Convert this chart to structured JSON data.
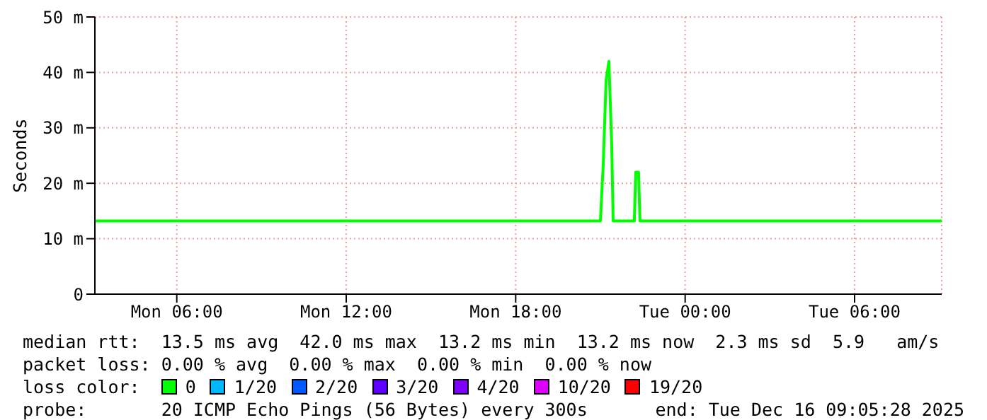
{
  "chart_data": {
    "type": "line",
    "ylabel": "Seconds",
    "legend_title": "loss color:",
    "x": [
      "2025-12-15T03:06",
      "2025-12-15T21:00",
      "2025-12-15T21:06",
      "2025-12-15T21:12",
      "2025-12-15T21:18",
      "2025-12-15T21:24",
      "2025-12-15T21:27",
      "2025-12-15T22:12",
      "2025-12-15T22:15",
      "2025-12-15T22:21",
      "2025-12-15T22:24",
      "2025-12-16T09:05"
    ],
    "xlim": [
      "2025-12-15T03:06",
      "2025-12-16T09:05"
    ],
    "xticks": [
      {
        "value": "2025-12-15T06:00",
        "label": "Mon 06:00"
      },
      {
        "value": "2025-12-15T12:00",
        "label": "Mon 12:00"
      },
      {
        "value": "2025-12-15T18:00",
        "label": "Mon 18:00"
      },
      {
        "value": "2025-12-16T00:00",
        "label": "Tue 00:00"
      },
      {
        "value": "2025-12-16T06:00",
        "label": "Tue 06:00"
      }
    ],
    "ylim": [
      0,
      50
    ],
    "yticks": [
      {
        "value": 0,
        "label": "0"
      },
      {
        "value": 10,
        "label": "10 m"
      },
      {
        "value": 20,
        "label": "20 m"
      },
      {
        "value": 30,
        "label": "30 m"
      },
      {
        "value": 40,
        "label": "40 m"
      },
      {
        "value": 50,
        "label": "50 m"
      }
    ],
    "series": [
      {
        "name": "0",
        "color": "#00ff00",
        "values": [
          13.2,
          13.2,
          23.5,
          38.5,
          42.0,
          27.0,
          13.2,
          13.2,
          22.0,
          22.0,
          13.2,
          13.2
        ]
      },
      {
        "name": "1/20",
        "color": "#00b8ff",
        "values": [
          null,
          null,
          null,
          null,
          null,
          null,
          null,
          null,
          null,
          null,
          null,
          null
        ]
      },
      {
        "name": "2/20",
        "color": "#0059ff",
        "values": [
          null,
          null,
          null,
          null,
          null,
          null,
          null,
          null,
          null,
          null,
          null,
          null
        ]
      },
      {
        "name": "3/20",
        "color": "#5e00ff",
        "values": [
          null,
          null,
          null,
          null,
          null,
          null,
          null,
          null,
          null,
          null,
          null,
          null
        ]
      },
      {
        "name": "4/20",
        "color": "#7e00ff",
        "values": [
          null,
          null,
          null,
          null,
          null,
          null,
          null,
          null,
          null,
          null,
          null,
          null
        ]
      },
      {
        "name": "10/20",
        "color": "#dd00ff",
        "values": [
          null,
          null,
          null,
          null,
          null,
          null,
          null,
          null,
          null,
          null,
          null,
          null
        ]
      },
      {
        "name": "19/20",
        "color": "#ff0000",
        "values": [
          null,
          null,
          null,
          null,
          null,
          null,
          null,
          null,
          null,
          null,
          null,
          null
        ]
      }
    ],
    "grid": true,
    "legend": "bottom",
    "marker": "none",
    "annotations": [
      "median rtt:  13.5 ms avg  42.0 ms max  13.2 ms min  13.2 ms now  2.3 ms sd  5.9   am/s",
      "packet loss: 0.00 % avg  0.00 % max  0.00 % min  0.00 % now",
      "probe:       20 ICMP Echo Pings (56 Bytes) every 300s",
      "end: Tue Dec 16 09:05:28 2025"
    ]
  }
}
